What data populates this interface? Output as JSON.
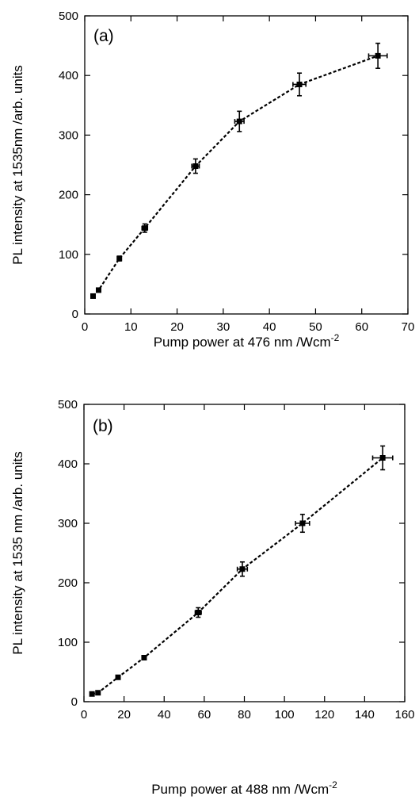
{
  "chart_data": [
    {
      "id": "a",
      "type": "scatter",
      "panel_label": "(a)",
      "xlabel": "Pump power at 476 nm /Wcm",
      "xlabel_sup": "-2",
      "ylabel": "PL intensity at 1535nm /arb. units",
      "xlim": [
        0,
        70
      ],
      "ylim": [
        0,
        500
      ],
      "xticks": [
        0,
        10,
        20,
        30,
        40,
        50,
        60,
        70
      ],
      "yticks": [
        0,
        100,
        200,
        300,
        400,
        500
      ],
      "grid": false,
      "legend": "none",
      "connector": "dashed",
      "points": [
        {
          "x": 1.8,
          "y": 30,
          "xerr": 0,
          "yerr": 0
        },
        {
          "x": 3.0,
          "y": 40,
          "xerr": 0,
          "yerr": 0
        },
        {
          "x": 7.5,
          "y": 93,
          "xerr": 0,
          "yerr": 4
        },
        {
          "x": 13.0,
          "y": 144,
          "xerr": 0.6,
          "yerr": 7
        },
        {
          "x": 24.0,
          "y": 248,
          "xerr": 0.8,
          "yerr": 12
        },
        {
          "x": 33.5,
          "y": 323,
          "xerr": 1.0,
          "yerr": 17
        },
        {
          "x": 46.5,
          "y": 385,
          "xerr": 1.4,
          "yerr": 19
        },
        {
          "x": 63.5,
          "y": 433,
          "xerr": 2.0,
          "yerr": 21
        }
      ]
    },
    {
      "id": "b",
      "type": "scatter",
      "panel_label": "(b)",
      "xlabel": "Pump power at 488 nm /Wcm",
      "xlabel_sup": "-2",
      "ylabel": "PL intensity at 1535 nm /arb. units",
      "xlim": [
        0,
        160
      ],
      "ylim": [
        0,
        500
      ],
      "xticks": [
        0,
        20,
        40,
        60,
        80,
        100,
        120,
        140,
        160
      ],
      "yticks": [
        0,
        100,
        200,
        300,
        400,
        500
      ],
      "grid": false,
      "legend": "none",
      "connector": "dashed",
      "points": [
        {
          "x": 4.0,
          "y": 13,
          "xerr": 0,
          "yerr": 0
        },
        {
          "x": 7.0,
          "y": 15,
          "xerr": 0,
          "yerr": 0
        },
        {
          "x": 17.0,
          "y": 41,
          "xerr": 0,
          "yerr": 0
        },
        {
          "x": 30.0,
          "y": 74,
          "xerr": 0,
          "yerr": 3
        },
        {
          "x": 57.0,
          "y": 150,
          "xerr": 1.5,
          "yerr": 8
        },
        {
          "x": 79.0,
          "y": 223,
          "xerr": 2.5,
          "yerr": 12
        },
        {
          "x": 109.0,
          "y": 300,
          "xerr": 3.5,
          "yerr": 15
        },
        {
          "x": 149.0,
          "y": 410,
          "xerr": 5.0,
          "yerr": 20
        }
      ]
    }
  ]
}
